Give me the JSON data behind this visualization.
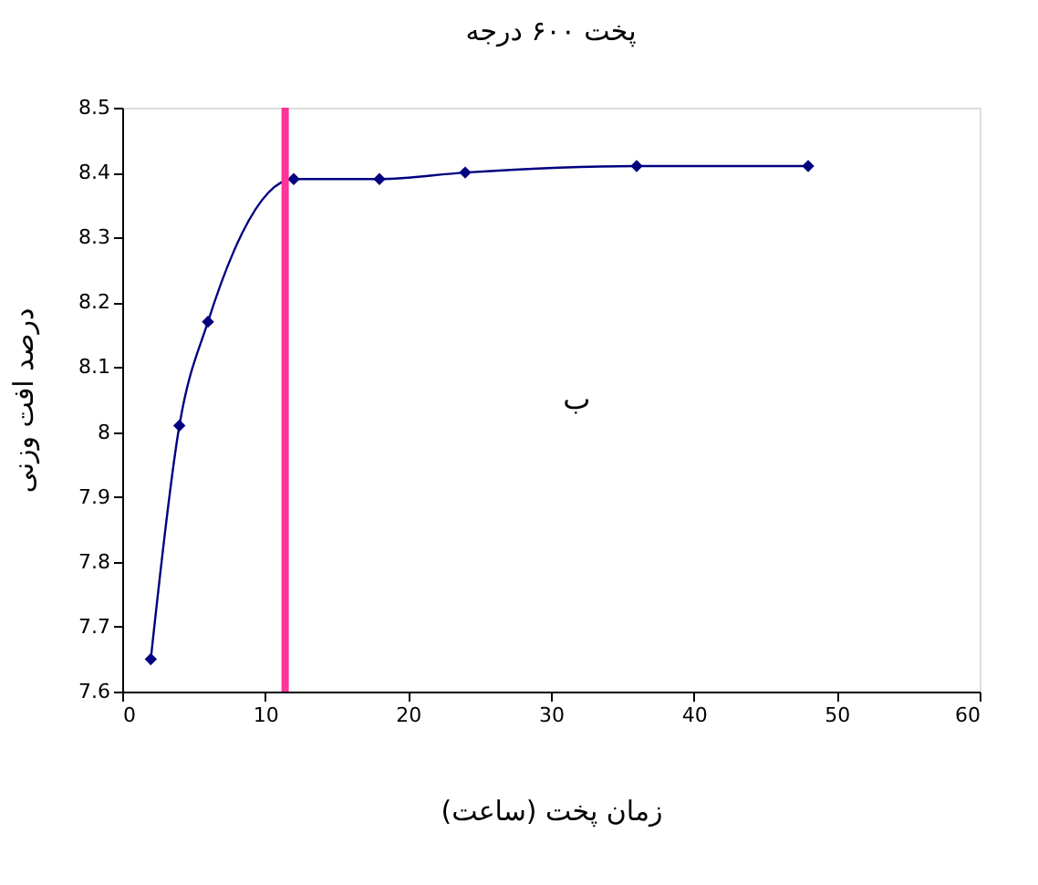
{
  "chart_data": {
    "type": "line",
    "title": "پخت ۶۰۰ درجه",
    "xlabel": "زمان پخت (ساعت)",
    "ylabel": "درصد افت وزنی",
    "x": [
      2,
      4,
      6,
      12,
      18,
      24,
      36,
      48
    ],
    "series": [
      {
        "color": "#000080",
        "values": [
          7.65,
          8.01,
          8.17,
          8.39,
          8.39,
          8.4,
          8.41,
          8.41
        ]
      }
    ],
    "xlim": [
      0,
      60
    ],
    "xticks": [
      0,
      10,
      20,
      30,
      40,
      50,
      60
    ],
    "ylim": [
      7.6,
      8.5
    ],
    "yticks": [
      7.6,
      7.7,
      7.8,
      7.9,
      8,
      8.1,
      8.2,
      8.3,
      8.4,
      8.5
    ],
    "ref_lines": [
      {
        "axis": "x",
        "value": 11.4,
        "color": "#ff3399",
        "line_style": "solid"
      }
    ],
    "annotations": [
      "ب"
    ],
    "marker": "diamond",
    "line_style": "solid",
    "grid": false
  }
}
